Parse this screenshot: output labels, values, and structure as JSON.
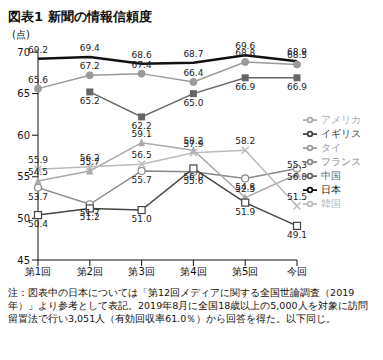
{
  "chart_data": {
    "type": "line",
    "title": "図表1 新聞の情報信頼度",
    "y_label": "(点)",
    "note": "注：図表中の日本については「第12回メディアに関する全国世論調査（2019年）」より参考として表記。2019年8月に全国18歳以上の5,000人を対象に訪問留置法で行い3,051人（有効回収率61.0％）から回答を得た。以下同じ。",
    "categories": [
      "第1回",
      "第2回",
      "第3回",
      "第4回",
      "第5回",
      "今回"
    ],
    "ylim": [
      45,
      70
    ],
    "yticks": [
      45,
      50,
      55,
      60,
      65,
      70
    ],
    "grid": false,
    "legend": "right",
    "data_labels": true,
    "series": [
      {
        "name": "日本",
        "color": "#111111",
        "marker": "none",
        "values": [
          69.2,
          69.4,
          68.6,
          68.7,
          69.6,
          68.9
        ],
        "value_labels": [
          "69.2",
          "69.4",
          "68.6",
          "68.7",
          "69.6",
          "68.9"
        ]
      },
      {
        "name": "タイ",
        "color": "#9a9a9a",
        "marker": "circle",
        "values": [
          65.6,
          67.2,
          67.4,
          66.4,
          68.8,
          68.5
        ],
        "value_labels": [
          "65.6",
          "67.2",
          "67.4",
          "66.4",
          "68.8",
          "68.5"
        ]
      },
      {
        "name": "中国",
        "color": "#666666",
        "marker": "square",
        "values": [
          null,
          65.2,
          62.2,
          65.0,
          66.9,
          66.9
        ],
        "value_labels": [
          null,
          "65.2",
          "62.2",
          "65.0",
          "66.9",
          "66.9"
        ]
      },
      {
        "name": "フランス",
        "color": "#888888",
        "marker": "open_circle",
        "values": [
          53.7,
          51.7,
          55.7,
          55.6,
          54.8,
          56.0
        ],
        "value_labels": [
          "53.7",
          "51.7",
          "55.7",
          "55.6",
          "54.8",
          "56.0"
        ]
      },
      {
        "name": "アメリカ",
        "color": "#aaaaaa",
        "marker": "triangle",
        "values": [
          54.5,
          55.7,
          59.1,
          58.2,
          52.5,
          55.3
        ],
        "value_labels": [
          "54.5",
          "55.7",
          "59.1",
          "58.2",
          "52.5",
          "55.3"
        ]
      },
      {
        "name": "韓国",
        "color": "#bbbbbb",
        "marker": "x",
        "values": [
          55.9,
          56.2,
          56.5,
          57.9,
          58.2,
          51.5
        ],
        "value_labels": [
          "55.9",
          "56.2",
          "56.5",
          "57.9",
          "58.2",
          "51.5"
        ]
      },
      {
        "name": "イギリス",
        "color": "#444444",
        "marker": "open_square",
        "values": [
          50.4,
          51.2,
          51.0,
          56.0,
          51.9,
          49.1
        ],
        "value_labels": [
          "50.4",
          "51.2",
          "51.0",
          "56.0",
          "51.9",
          "49.1"
        ]
      }
    ]
  }
}
